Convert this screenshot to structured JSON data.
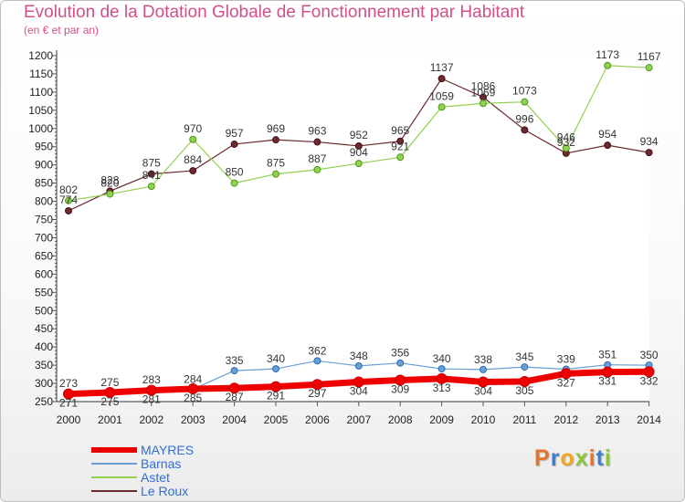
{
  "header": {
    "title": "Evolution de la Dotation Globale de Fonctionnement par Habitant",
    "subtitle": "(en € et par an)"
  },
  "logo": {
    "text": "Proxiti",
    "colors": [
      "#e8742a",
      "#3d7fd0",
      "#f2a71d",
      "#8cc63f",
      "#e8742a",
      "#3d7fd0",
      "#8cc63f"
    ]
  },
  "chart_data": {
    "type": "line",
    "title": "Evolution de la Dotation Globale de Fonctionnement par Habitant",
    "subtitle": "(en € et par an)",
    "xlabel": "",
    "ylabel": "",
    "x": [
      "2000",
      "2001",
      "2002",
      "2003",
      "2004",
      "2005",
      "2006",
      "2007",
      "2008",
      "2009",
      "2010",
      "2011",
      "2012",
      "2013",
      "2014"
    ],
    "ylim": [
      250,
      1200
    ],
    "yticks": [
      250,
      300,
      350,
      400,
      450,
      500,
      550,
      600,
      650,
      700,
      750,
      800,
      850,
      900,
      950,
      1000,
      1050,
      1100,
      1150,
      1200
    ],
    "grid": false,
    "legend_position": "bottom-left",
    "series": [
      {
        "name": "MAYRES",
        "color": "#ee0000",
        "values": [
          271,
          275,
          281,
          285,
          287,
          291,
          297,
          304,
          309,
          313,
          304,
          305,
          327,
          331,
          332
        ]
      },
      {
        "name": "Barnas",
        "color": "#6a9fd4",
        "values": [
          273,
          275,
          283,
          284,
          335,
          340,
          362,
          348,
          356,
          340,
          338,
          345,
          339,
          351,
          350
        ]
      },
      {
        "name": "Astet",
        "color": "#92d050",
        "values": [
          802,
          820,
          841,
          970,
          850,
          875,
          887,
          904,
          921,
          1059,
          1069,
          1073,
          946,
          1173,
          1167
        ]
      },
      {
        "name": "Le Roux",
        "color": "#6b2a2f",
        "values": [
          774,
          828,
          875,
          884,
          957,
          969,
          963,
          952,
          965,
          1137,
          1086,
          996,
          932,
          954,
          934
        ]
      }
    ]
  }
}
